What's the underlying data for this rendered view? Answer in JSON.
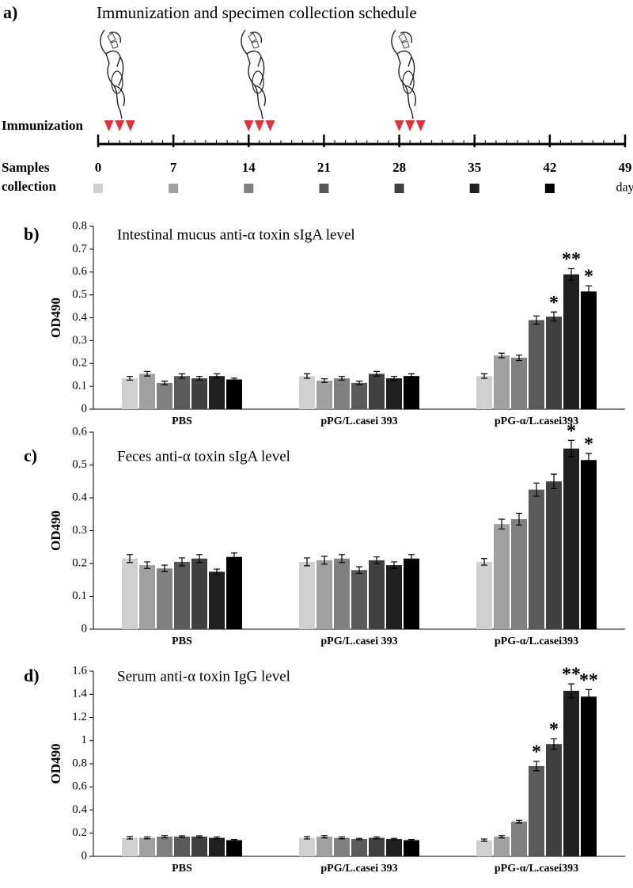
{
  "schedule": {
    "panel_label": "a)",
    "title": "Immunization and specimen collection schedule",
    "immunization_label": "Immunization",
    "samples_label": [
      "Samples",
      "collection"
    ],
    "unit": "day",
    "xlim": [
      0,
      49
    ],
    "xticks": [
      0,
      7,
      14,
      21,
      28,
      35,
      42,
      49
    ],
    "immunization_days": [
      1,
      2,
      3,
      14,
      15,
      16,
      28,
      29,
      30
    ],
    "triangle_color": "#e0303a",
    "sample_days": [
      0,
      7,
      14,
      21,
      28,
      35,
      42
    ],
    "sample_colors": [
      "#d0d0d0",
      "#a0a0a0",
      "#808080",
      "#5a5a5a",
      "#404040",
      "#202020",
      "#000000"
    ]
  },
  "chart_data": [
    {
      "type": "bar",
      "panel_label": "b)",
      "title": "Intestinal mucus anti-α toxin sIgA level",
      "y_label": "OD490",
      "categories": [
        "PBS",
        "pPG/L.casei 393",
        "pPG-α/L.casei393"
      ],
      "ylim": [
        0,
        0.8
      ],
      "yticks": [
        0,
        0.1,
        0.2,
        0.3,
        0.4,
        0.5,
        0.6,
        0.7,
        0.8
      ],
      "series": [
        {
          "color": "#d0d0d0",
          "values": [
            0.135,
            0.145,
            0.145
          ],
          "errors": [
            0.008,
            0.01,
            0.01
          ],
          "significance": [
            null,
            null,
            null
          ]
        },
        {
          "color": "#a0a0a0",
          "values": [
            0.155,
            0.125,
            0.235
          ],
          "errors": [
            0.01,
            0.008,
            0.01
          ],
          "significance": [
            null,
            null,
            null
          ]
        },
        {
          "color": "#808080",
          "values": [
            0.115,
            0.135,
            0.225
          ],
          "errors": [
            0.008,
            0.008,
            0.012
          ],
          "significance": [
            null,
            null,
            null
          ]
        },
        {
          "color": "#5a5a5a",
          "values": [
            0.145,
            0.115,
            0.39
          ],
          "errors": [
            0.01,
            0.008,
            0.018
          ],
          "significance": [
            null,
            null,
            null
          ]
        },
        {
          "color": "#404040",
          "values": [
            0.135,
            0.155,
            0.405
          ],
          "errors": [
            0.008,
            0.01,
            0.02
          ],
          "significance": [
            null,
            null,
            "*"
          ]
        },
        {
          "color": "#202020",
          "values": [
            0.145,
            0.135,
            0.59
          ],
          "errors": [
            0.01,
            0.008,
            0.025
          ],
          "significance": [
            null,
            null,
            "**"
          ]
        },
        {
          "color": "#000000",
          "values": [
            0.13,
            0.145,
            0.515
          ],
          "errors": [
            0.006,
            0.01,
            0.025
          ],
          "significance": [
            null,
            null,
            "*"
          ]
        }
      ]
    },
    {
      "type": "bar",
      "panel_label": "c)",
      "title": "Feces anti-α toxin sIgA level",
      "y_label": "OD490",
      "categories": [
        "PBS",
        "pPG/L.casei 393",
        "pPG-α/L.casei393"
      ],
      "ylim": [
        0,
        0.6
      ],
      "yticks": [
        0,
        0.1,
        0.2,
        0.3,
        0.4,
        0.5,
        0.6
      ],
      "series": [
        {
          "color": "#d0d0d0",
          "values": [
            0.215,
            0.205,
            0.205
          ],
          "errors": [
            0.012,
            0.012,
            0.01
          ],
          "significance": [
            null,
            null,
            null
          ]
        },
        {
          "color": "#a0a0a0",
          "values": [
            0.195,
            0.21,
            0.32
          ],
          "errors": [
            0.01,
            0.012,
            0.015
          ],
          "significance": [
            null,
            null,
            null
          ]
        },
        {
          "color": "#808080",
          "values": [
            0.185,
            0.215,
            0.335
          ],
          "errors": [
            0.01,
            0.012,
            0.018
          ],
          "significance": [
            null,
            null,
            null
          ]
        },
        {
          "color": "#5a5a5a",
          "values": [
            0.205,
            0.18,
            0.425
          ],
          "errors": [
            0.012,
            0.01,
            0.02
          ],
          "significance": [
            null,
            null,
            null
          ]
        },
        {
          "color": "#404040",
          "values": [
            0.215,
            0.21,
            0.45
          ],
          "errors": [
            0.012,
            0.01,
            0.022
          ],
          "significance": [
            null,
            null,
            null
          ]
        },
        {
          "color": "#202020",
          "values": [
            0.175,
            0.195,
            0.55
          ],
          "errors": [
            0.008,
            0.01,
            0.025
          ],
          "significance": [
            null,
            null,
            "*"
          ]
        },
        {
          "color": "#000000",
          "values": [
            0.22,
            0.215,
            0.515
          ],
          "errors": [
            0.012,
            0.012,
            0.02
          ],
          "significance": [
            null,
            null,
            "*"
          ]
        }
      ]
    },
    {
      "type": "bar",
      "panel_label": "d)",
      "title": "Serum anti-α toxin IgG level",
      "y_label": "OD490",
      "categories": [
        "PBS",
        "pPG/L.casei 393",
        "pPG-α/L.casei393"
      ],
      "ylim": [
        0,
        1.6
      ],
      "yticks": [
        0,
        0.2,
        0.4,
        0.6,
        0.8,
        1,
        1.2,
        1.4,
        1.6
      ],
      "series": [
        {
          "color": "#d0d0d0",
          "values": [
            0.16,
            0.16,
            0.14
          ],
          "errors": [
            0.01,
            0.01,
            0.01
          ],
          "significance": [
            null,
            null,
            null
          ]
        },
        {
          "color": "#a0a0a0",
          "values": [
            0.16,
            0.17,
            0.17
          ],
          "errors": [
            0.008,
            0.01,
            0.01
          ],
          "significance": [
            null,
            null,
            null
          ]
        },
        {
          "color": "#808080",
          "values": [
            0.17,
            0.16,
            0.3
          ],
          "errors": [
            0.01,
            0.008,
            0.012
          ],
          "significance": [
            null,
            null,
            null
          ]
        },
        {
          "color": "#5a5a5a",
          "values": [
            0.17,
            0.15,
            0.78
          ],
          "errors": [
            0.008,
            0.006,
            0.04
          ],
          "significance": [
            null,
            null,
            "*"
          ]
        },
        {
          "color": "#404040",
          "values": [
            0.17,
            0.16,
            0.97
          ],
          "errors": [
            0.008,
            0.008,
            0.045
          ],
          "significance": [
            null,
            null,
            "*"
          ]
        },
        {
          "color": "#202020",
          "values": [
            0.16,
            0.15,
            1.43
          ],
          "errors": [
            0.008,
            0.006,
            0.06
          ],
          "significance": [
            null,
            null,
            "**"
          ]
        },
        {
          "color": "#000000",
          "values": [
            0.14,
            0.14,
            1.38
          ],
          "errors": [
            0.006,
            0.006,
            0.06
          ],
          "significance": [
            null,
            null,
            "**"
          ]
        }
      ]
    }
  ]
}
